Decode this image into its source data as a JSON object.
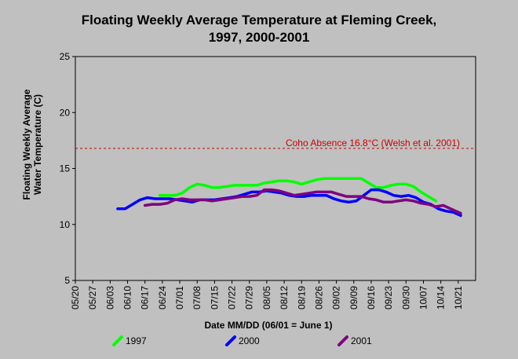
{
  "chart_data": {
    "type": "line",
    "title": "Floating Weekly Average Temperature at Fleming Creek,",
    "subtitle": "1997, 2000-2001",
    "xlabel": "Date MM/DD (06/01 = June 1)",
    "ylabel_line1": "Floating Weekly Average",
    "ylabel_line2": "Water Temperature (C)",
    "x_ticks": [
      "05/20",
      "05/27",
      "06/03",
      "06/10",
      "06/17",
      "06/24",
      "07/01",
      "07/08",
      "07/15",
      "07/22",
      "07/29",
      "08/05",
      "08/12",
      "08/19",
      "08/26",
      "09/02",
      "09/09",
      "09/16",
      "09/23",
      "09/30",
      "10/07",
      "10/14",
      "10/21"
    ],
    "x_range_days": [
      0,
      161
    ],
    "y_ticks": [
      5,
      10,
      15,
      20,
      25
    ],
    "ylim": [
      5,
      25
    ],
    "grid": false,
    "legend_position": "bottom",
    "reference_line": {
      "value": 16.8,
      "label": "Coho Absence 16.8°C (Welsh et al. 2001)",
      "color": "#cc0000"
    },
    "series": [
      {
        "name": "1997",
        "color": "#00ff00",
        "points": [
          [
            "06/23",
            12.6
          ],
          [
            "06/26",
            12.6
          ],
          [
            "06/29",
            12.6
          ],
          [
            "07/02",
            12.8
          ],
          [
            "07/05",
            13.3
          ],
          [
            "07/08",
            13.6
          ],
          [
            "07/11",
            13.5
          ],
          [
            "07/14",
            13.3
          ],
          [
            "07/17",
            13.3
          ],
          [
            "07/20",
            13.4
          ],
          [
            "07/23",
            13.5
          ],
          [
            "07/26",
            13.5
          ],
          [
            "07/29",
            13.5
          ],
          [
            "08/01",
            13.5
          ],
          [
            "08/04",
            13.7
          ],
          [
            "08/07",
            13.8
          ],
          [
            "08/10",
            13.9
          ],
          [
            "08/13",
            13.9
          ],
          [
            "08/16",
            13.8
          ],
          [
            "08/19",
            13.6
          ],
          [
            "08/22",
            13.8
          ],
          [
            "08/25",
            14.0
          ],
          [
            "08/28",
            14.1
          ],
          [
            "08/31",
            14.1
          ],
          [
            "09/03",
            14.1
          ],
          [
            "09/06",
            14.1
          ],
          [
            "09/09",
            14.1
          ],
          [
            "09/12",
            14.1
          ],
          [
            "09/15",
            13.7
          ],
          [
            "09/18",
            13.3
          ],
          [
            "09/21",
            13.3
          ],
          [
            "09/24",
            13.5
          ],
          [
            "09/27",
            13.6
          ],
          [
            "09/30",
            13.6
          ],
          [
            "10/03",
            13.4
          ],
          [
            "10/06",
            12.9
          ],
          [
            "10/09",
            12.5
          ],
          [
            "10/12",
            12.1
          ]
        ]
      },
      {
        "name": "2000",
        "color": "#0000ff",
        "points": [
          [
            "06/06",
            11.4
          ],
          [
            "06/09",
            11.4
          ],
          [
            "06/12",
            11.8
          ],
          [
            "06/15",
            12.2
          ],
          [
            "06/18",
            12.4
          ],
          [
            "06/21",
            12.3
          ],
          [
            "06/24",
            12.3
          ],
          [
            "06/27",
            12.3
          ],
          [
            "06/30",
            12.2
          ],
          [
            "07/03",
            12.1
          ],
          [
            "07/06",
            12.0
          ],
          [
            "07/09",
            12.2
          ],
          [
            "07/12",
            12.2
          ],
          [
            "07/15",
            12.2
          ],
          [
            "07/18",
            12.3
          ],
          [
            "07/21",
            12.4
          ],
          [
            "07/24",
            12.5
          ],
          [
            "07/27",
            12.7
          ],
          [
            "07/30",
            12.9
          ],
          [
            "08/02",
            12.9
          ],
          [
            "08/05",
            13.0
          ],
          [
            "08/08",
            12.9
          ],
          [
            "08/11",
            12.8
          ],
          [
            "08/14",
            12.6
          ],
          [
            "08/17",
            12.5
          ],
          [
            "08/20",
            12.5
          ],
          [
            "08/23",
            12.6
          ],
          [
            "08/26",
            12.6
          ],
          [
            "08/29",
            12.6
          ],
          [
            "09/01",
            12.3
          ],
          [
            "09/04",
            12.1
          ],
          [
            "09/07",
            12.0
          ],
          [
            "09/10",
            12.1
          ],
          [
            "09/13",
            12.6
          ],
          [
            "09/16",
            13.1
          ],
          [
            "09/19",
            13.1
          ],
          [
            "09/22",
            12.9
          ],
          [
            "09/25",
            12.6
          ],
          [
            "09/28",
            12.5
          ],
          [
            "10/01",
            12.6
          ],
          [
            "10/04",
            12.4
          ],
          [
            "10/07",
            12.0
          ],
          [
            "10/10",
            11.8
          ],
          [
            "10/13",
            11.4
          ],
          [
            "10/16",
            11.2
          ],
          [
            "10/19",
            11.1
          ],
          [
            "10/22",
            10.8
          ]
        ]
      },
      {
        "name": "2001",
        "color": "#800080",
        "points": [
          [
            "06/17",
            11.7
          ],
          [
            "06/20",
            11.8
          ],
          [
            "06/23",
            11.8
          ],
          [
            "06/26",
            11.9
          ],
          [
            "06/29",
            12.2
          ],
          [
            "07/02",
            12.3
          ],
          [
            "07/05",
            12.2
          ],
          [
            "07/08",
            12.2
          ],
          [
            "07/11",
            12.2
          ],
          [
            "07/14",
            12.1
          ],
          [
            "07/17",
            12.2
          ],
          [
            "07/20",
            12.3
          ],
          [
            "07/23",
            12.4
          ],
          [
            "07/26",
            12.5
          ],
          [
            "07/29",
            12.5
          ],
          [
            "08/01",
            12.6
          ],
          [
            "08/04",
            13.1
          ],
          [
            "08/07",
            13.1
          ],
          [
            "08/10",
            13.0
          ],
          [
            "08/13",
            12.8
          ],
          [
            "08/16",
            12.6
          ],
          [
            "08/19",
            12.7
          ],
          [
            "08/22",
            12.8
          ],
          [
            "08/25",
            12.9
          ],
          [
            "08/28",
            12.9
          ],
          [
            "08/31",
            12.9
          ],
          [
            "09/03",
            12.7
          ],
          [
            "09/06",
            12.5
          ],
          [
            "09/09",
            12.5
          ],
          [
            "09/12",
            12.5
          ],
          [
            "09/15",
            12.3
          ],
          [
            "09/18",
            12.2
          ],
          [
            "09/21",
            12.0
          ],
          [
            "09/24",
            12.0
          ],
          [
            "09/27",
            12.1
          ],
          [
            "09/30",
            12.2
          ],
          [
            "10/03",
            12.1
          ],
          [
            "10/06",
            11.9
          ],
          [
            "10/09",
            11.8
          ],
          [
            "10/12",
            11.6
          ],
          [
            "10/15",
            11.7
          ],
          [
            "10/18",
            11.4
          ],
          [
            "10/21",
            11.1
          ],
          [
            "10/22",
            11.0
          ]
        ]
      }
    ]
  }
}
